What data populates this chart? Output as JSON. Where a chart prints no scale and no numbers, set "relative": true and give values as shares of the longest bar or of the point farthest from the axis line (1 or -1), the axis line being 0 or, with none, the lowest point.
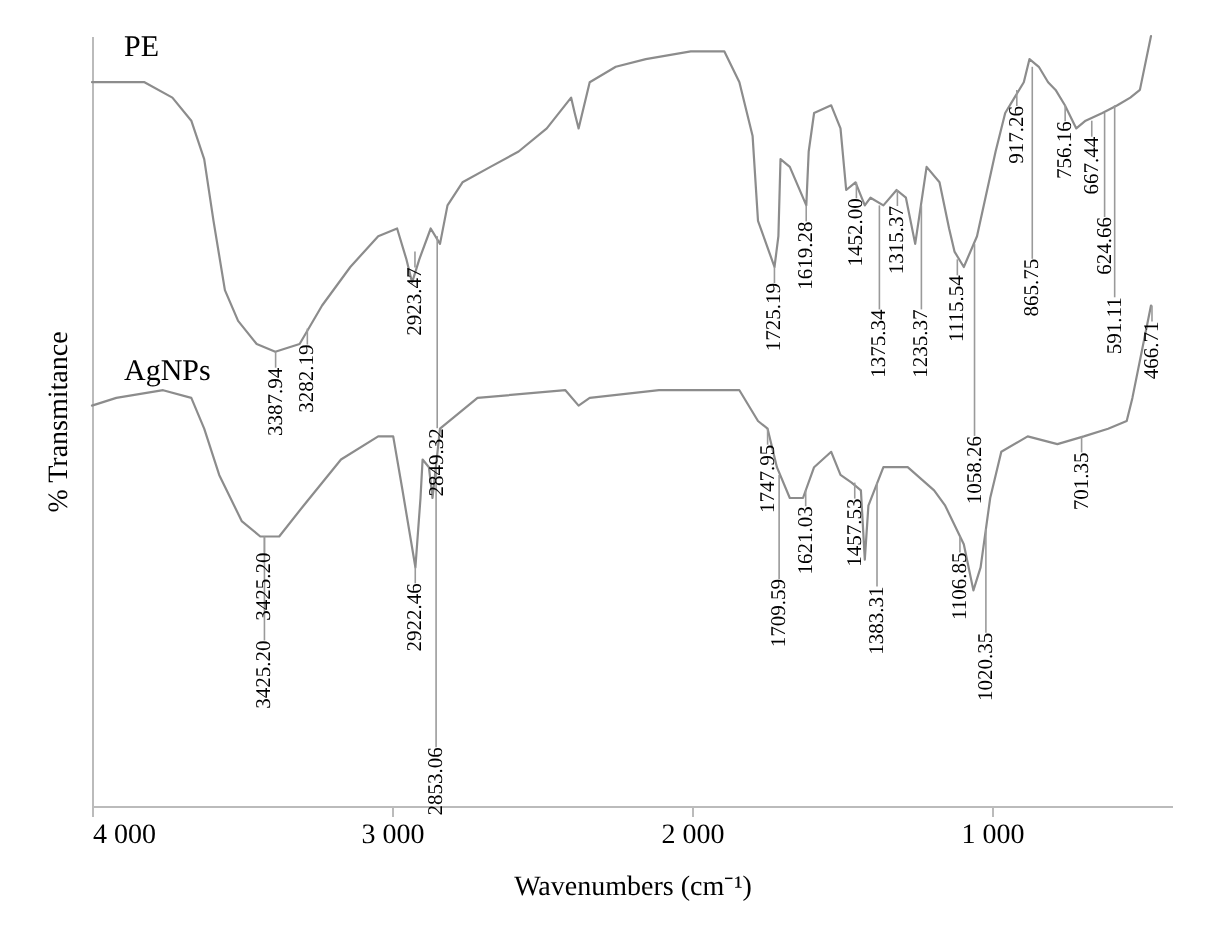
{
  "chart_data": {
    "type": "line",
    "relative": true,
    "xlabel": "Wavenumbers (cm⁻¹)",
    "ylabel": "% Transmitance",
    "xlim": [
      4000,
      400
    ],
    "xticks": [
      {
        "value": 4000,
        "label": "4 000"
      },
      {
        "value": 3000,
        "label": "3 000"
      },
      {
        "value": 2000,
        "label": "2 000"
      },
      {
        "value": 1000,
        "label": "1 000"
      }
    ],
    "grid": false,
    "marker": "none",
    "line_style": "solid",
    "series": [
      {
        "name": "PE",
        "color": "#8c8c8c",
        "x": [
          4000,
          3825,
          3732,
          3669,
          3626,
          3595,
          3557,
          3513,
          3451,
          3389,
          3308,
          3233,
          3139,
          3046,
          2983,
          2952,
          2933,
          2909,
          2871,
          2840,
          2815,
          2765,
          2672,
          2578,
          2484,
          2403,
          2391,
          2378,
          2341,
          2254,
          2154,
          2004,
          1892,
          1842,
          1798,
          1780,
          1725,
          1712,
          1705,
          1674,
          1619,
          1611,
          1593,
          1536,
          1505,
          1486,
          1455,
          1424,
          1405,
          1362,
          1318,
          1287,
          1256,
          1218,
          1175,
          1143,
          1125,
          1094,
          1050,
          988,
          956,
          925,
          894,
          875,
          844,
          813,
          788,
          757,
          719,
          688,
          632,
          582,
          539,
          507,
          470
        ],
        "values": [
          0.94,
          0.94,
          0.92,
          0.89,
          0.84,
          0.76,
          0.67,
          0.63,
          0.6,
          0.59,
          0.6,
          0.65,
          0.7,
          0.74,
          0.75,
          0.71,
          0.68,
          0.71,
          0.75,
          0.73,
          0.78,
          0.81,
          0.83,
          0.85,
          0.88,
          0.92,
          0.9,
          0.88,
          0.94,
          0.96,
          0.97,
          0.98,
          0.98,
          0.94,
          0.87,
          0.76,
          0.7,
          0.74,
          0.84,
          0.83,
          0.78,
          0.85,
          0.9,
          0.91,
          0.88,
          0.8,
          0.81,
          0.78,
          0.79,
          0.78,
          0.8,
          0.79,
          0.73,
          0.83,
          0.81,
          0.75,
          0.72,
          0.7,
          0.74,
          0.85,
          0.9,
          0.92,
          0.94,
          0.97,
          0.96,
          0.94,
          0.93,
          0.91,
          0.88,
          0.89,
          0.9,
          0.91,
          0.92,
          0.93,
          1.0
        ]
      },
      {
        "name": "AgNPs",
        "color": "#8c8c8c",
        "x": [
          4000,
          3919,
          3763,
          3669,
          3626,
          3576,
          3501,
          3439,
          3376,
          3295,
          3170,
          3046,
          2996,
          2965,
          2922,
          2905,
          2898,
          2877,
          2865,
          2840,
          2715,
          2422,
          2378,
          2341,
          2110,
          1842,
          1780,
          1748,
          1717,
          1674,
          1630,
          1593,
          1536,
          1505,
          1468,
          1437,
          1424,
          1412,
          1362,
          1281,
          1193,
          1156,
          1094,
          1062,
          1038,
          1006,
          969,
          881,
          782,
          694,
          613,
          551,
          532,
          470
        ],
        "values": [
          0.52,
          0.53,
          0.54,
          0.53,
          0.49,
          0.43,
          0.37,
          0.35,
          0.35,
          0.39,
          0.45,
          0.48,
          0.48,
          0.41,
          0.31,
          0.4,
          0.45,
          0.44,
          0.4,
          0.49,
          0.53,
          0.54,
          0.52,
          0.53,
          0.54,
          0.54,
          0.5,
          0.49,
          0.44,
          0.4,
          0.4,
          0.44,
          0.46,
          0.43,
          0.42,
          0.41,
          0.32,
          0.39,
          0.44,
          0.44,
          0.41,
          0.39,
          0.34,
          0.28,
          0.31,
          0.4,
          0.46,
          0.48,
          0.47,
          0.48,
          0.49,
          0.5,
          0.53,
          0.65
        ]
      }
    ],
    "annotations": [
      {
        "text": "3387.94",
        "x": 3387.94,
        "y": 0.59
      },
      {
        "text": "3282.19",
        "x": 3282.19,
        "y": 0.62
      },
      {
        "text": "2923.47",
        "x": 2923.47,
        "y": 0.72
      },
      {
        "text": "2849.32",
        "x": 2849.32,
        "y": 0.74
      },
      {
        "text": "1725.19",
        "x": 1725.19,
        "y": 0.7
      },
      {
        "text": "1619.28",
        "x": 1619.28,
        "y": 0.78
      },
      {
        "text": "1452.00",
        "x": 1452.0,
        "y": 0.81
      },
      {
        "text": "1375.34",
        "x": 1375.34,
        "y": 0.78
      },
      {
        "text": "1315.37",
        "x": 1315.37,
        "y": 0.8
      },
      {
        "text": "1235.37",
        "x": 1235.37,
        "y": 0.78
      },
      {
        "text": "1115.54",
        "x": 1115.54,
        "y": 0.71
      },
      {
        "text": "1058.26",
        "x": 1058.26,
        "y": 0.73
      },
      {
        "text": "917.26",
        "x": 917.26,
        "y": 0.93
      },
      {
        "text": "865.75",
        "x": 865.75,
        "y": 0.96
      },
      {
        "text": "756.16",
        "x": 756.16,
        "y": 0.91
      },
      {
        "text": "667.44",
        "x": 667.44,
        "y": 0.89
      },
      {
        "text": "624.66",
        "x": 624.66,
        "y": 0.9
      },
      {
        "text": "591.11",
        "x": 591.11,
        "y": 0.91
      },
      {
        "text": "3425.20",
        "x": 3425.2,
        "y": 0.35
      },
      {
        "text": "3425.20",
        "x": 3425.2,
        "y": 0.35
      },
      {
        "text": "2922.46",
        "x": 2922.46,
        "y": 0.31
      },
      {
        "text": "2853.06",
        "x": 2853.06,
        "y": 0.44
      },
      {
        "text": "1747.95",
        "x": 1747.95,
        "y": 0.49
      },
      {
        "text": "1709.59",
        "x": 1709.59,
        "y": 0.43
      },
      {
        "text": "1621.03",
        "x": 1621.03,
        "y": 0.41
      },
      {
        "text": "1457.53",
        "x": 1457.53,
        "y": 0.42
      },
      {
        "text": "1383.31",
        "x": 1383.31,
        "y": 0.42
      },
      {
        "text": "1106.85",
        "x": 1106.85,
        "y": 0.35
      },
      {
        "text": "1020.35",
        "x": 1020.35,
        "y": 0.36
      },
      {
        "text": "701.35",
        "x": 701.35,
        "y": 0.48
      },
      {
        "text": "466.71",
        "x": 466.71,
        "y": 0.65
      }
    ]
  }
}
